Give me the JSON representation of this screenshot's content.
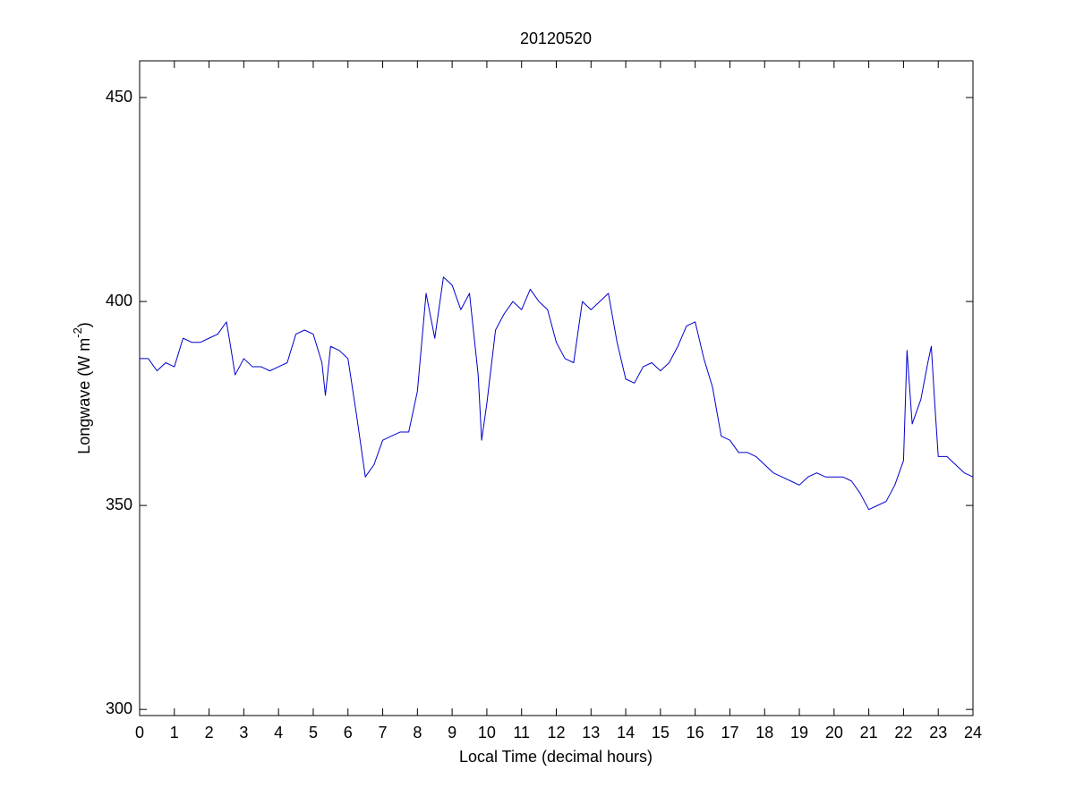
{
  "chart_data": {
    "type": "line",
    "title": "20120520",
    "xlabel": "Local Time (decimal hours)",
    "ylabel": {
      "text": "Longwave (W m",
      "sup": "-2",
      "close": ")"
    },
    "xlim": [
      0,
      24
    ],
    "ylim": [
      298.5,
      459
    ],
    "xticks": [
      0,
      1,
      2,
      3,
      4,
      5,
      6,
      7,
      8,
      9,
      10,
      11,
      12,
      13,
      14,
      15,
      16,
      17,
      18,
      19,
      20,
      21,
      22,
      23,
      24
    ],
    "yticks": [
      300,
      350,
      400,
      450
    ],
    "grid": false,
    "series": [
      {
        "color": "#0000cc",
        "x": [
          0,
          0.25,
          0.5,
          0.75,
          1,
          1.25,
          1.5,
          1.75,
          2,
          2.25,
          2.5,
          2.6,
          2.75,
          3,
          3.25,
          3.5,
          3.75,
          4,
          4.25,
          4.5,
          4.75,
          5,
          5.25,
          5.35,
          5.5,
          5.75,
          6,
          6.25,
          6.5,
          6.75,
          7,
          7.25,
          7.5,
          7.75,
          8,
          8.25,
          8.5,
          8.75,
          9,
          9.25,
          9.5,
          9.75,
          9.85,
          10,
          10.25,
          10.5,
          10.75,
          11,
          11.25,
          11.5,
          11.75,
          12,
          12.25,
          12.5,
          12.75,
          13,
          13.25,
          13.5,
          13.75,
          14,
          14.25,
          14.5,
          14.75,
          15,
          15.25,
          15.5,
          15.75,
          16,
          16.25,
          16.5,
          16.75,
          17,
          17.25,
          17.5,
          17.75,
          18,
          18.25,
          18.5,
          18.75,
          19,
          19.25,
          19.5,
          19.75,
          20,
          20.25,
          20.5,
          20.75,
          21,
          21.25,
          21.5,
          21.75,
          22,
          22.1,
          22.25,
          22.5,
          22.7,
          22.8,
          22.9,
          23,
          23.25,
          23.5,
          23.75,
          24
        ],
        "values": [
          386,
          386,
          383,
          385,
          384,
          391,
          390,
          390,
          391,
          392,
          395,
          390,
          382,
          386,
          384,
          384,
          383,
          384,
          385,
          392,
          393,
          392,
          385,
          377,
          389,
          388,
          386,
          372,
          357,
          360,
          366,
          367,
          368,
          368,
          378,
          402,
          391,
          406,
          404,
          398,
          402,
          382,
          366,
          375,
          393,
          397,
          400,
          398,
          403,
          400,
          398,
          390,
          386,
          385,
          400,
          398,
          400,
          402,
          390,
          381,
          380,
          384,
          385,
          383,
          385,
          389,
          394,
          395,
          386,
          379,
          367,
          366,
          363,
          363,
          362,
          360,
          358,
          357,
          356,
          355,
          357,
          358,
          357,
          357,
          357,
          356,
          353,
          349,
          350,
          351,
          355,
          361,
          388,
          370,
          376,
          385,
          389,
          375,
          362,
          362,
          360,
          358,
          357
        ]
      }
    ]
  }
}
